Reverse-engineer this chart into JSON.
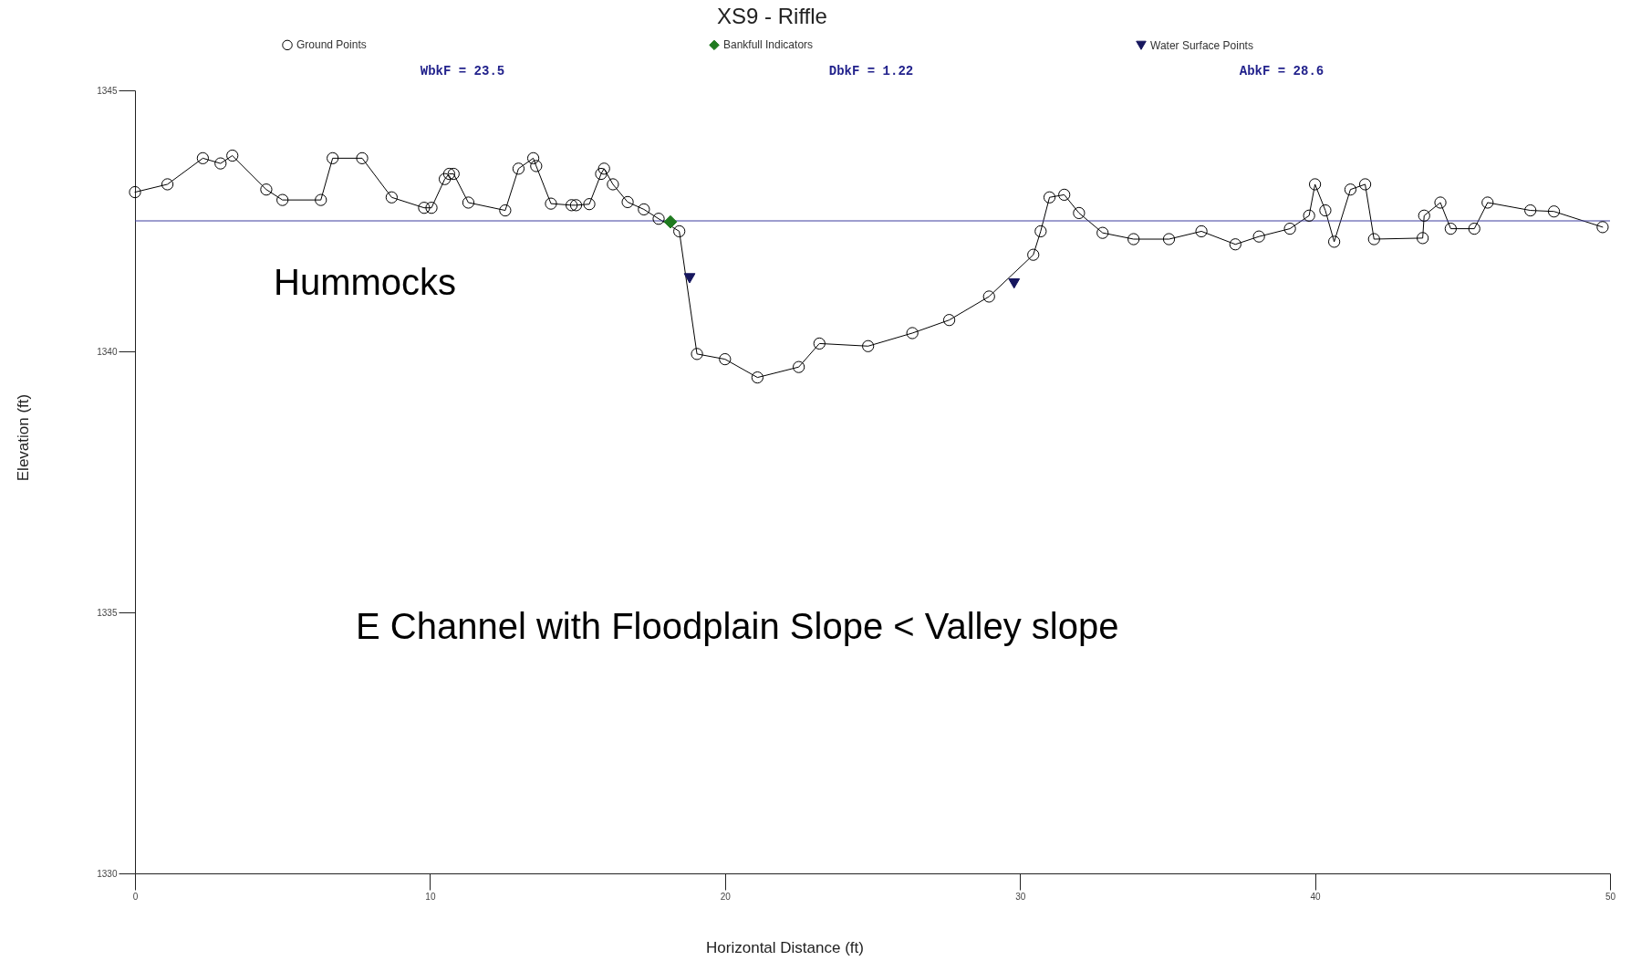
{
  "chart_data": {
    "type": "line",
    "title": "XS9 - Riffle",
    "xlabel": "Horizontal Distance (ft)",
    "ylabel": "Elevation (ft)",
    "xlim": [
      0,
      50
    ],
    "xticks": [
      0,
      10,
      20,
      30,
      40,
      50
    ],
    "ylim": [
      1330,
      1345
    ],
    "yticks": [
      1330,
      1335,
      1340,
      1345
    ],
    "legend": "top",
    "series": [
      {
        "name": "Ground Points",
        "marker": "circle",
        "color": "#000000",
        "x": [
          0,
          1.1,
          2.3,
          2.9,
          3.3,
          4.45,
          5.0,
          6.3,
          6.7,
          7.7,
          8.7,
          9.8,
          10.05,
          10.5,
          10.65,
          10.8,
          11.3,
          12.55,
          13.0,
          13.5,
          13.6,
          14.1,
          14.8,
          14.95,
          15.4,
          15.8,
          15.9,
          16.2,
          16.7,
          17.25,
          17.75,
          18.45,
          19.05,
          20.0,
          21.1,
          22.5,
          23.2,
          24.85,
          26.35,
          27.6,
          28.95,
          30.45,
          30.7,
          31.0,
          31.5,
          32.0,
          32.8,
          33.85,
          35.05,
          36.15,
          37.3,
          38.1,
          39.15,
          39.8,
          40.0,
          40.35,
          40.65,
          41.2,
          41.7,
          42.0,
          43.65,
          43.7,
          44.25,
          44.6,
          45.4,
          45.85,
          47.3,
          48.1,
          49.75
        ],
        "values": [
          1343.05,
          1343.2,
          1343.7,
          1343.6,
          1343.75,
          1343.1,
          1342.9,
          1342.9,
          1343.7,
          1343.7,
          1342.95,
          1342.75,
          1342.75,
          1343.3,
          1343.4,
          1343.4,
          1342.85,
          1342.7,
          1343.5,
          1343.7,
          1343.55,
          1342.83,
          1342.8,
          1342.8,
          1342.82,
          1343.4,
          1343.5,
          1343.2,
          1342.86,
          1342.72,
          1342.54,
          1342.3,
          1339.95,
          1339.85,
          1339.5,
          1339.7,
          1340.15,
          1340.1,
          1340.35,
          1340.6,
          1341.05,
          1341.85,
          1342.3,
          1342.95,
          1343.0,
          1342.65,
          1342.27,
          1342.15,
          1342.15,
          1342.3,
          1342.05,
          1342.2,
          1342.35,
          1342.6,
          1343.2,
          1342.7,
          1342.1,
          1343.1,
          1343.2,
          1342.15,
          1342.17,
          1342.6,
          1342.85,
          1342.35,
          1342.35,
          1342.85,
          1342.7,
          1342.68,
          1342.38
        ]
      },
      {
        "name": "Bankfull Indicators",
        "type": "scatter",
        "marker": "diamond",
        "color": "#1f7a1f",
        "x": [
          18.15
        ],
        "values": [
          1342.48
        ]
      },
      {
        "name": "Water Surface Points",
        "type": "scatter",
        "marker": "triangle",
        "color": "#16165e",
        "x": [
          18.8,
          29.8
        ],
        "values": [
          1341.4,
          1341.3
        ]
      }
    ],
    "ref_lines": [
      {
        "axis": "y",
        "value": 1342.5,
        "color": "#3d3d9e"
      }
    ],
    "annotations": [
      "WbkF = 23.5",
      "DbkF = 1.22",
      "AbkF = 28.6",
      "Hummocks",
      "E Channel with Floodplain Slope < Valley slope"
    ]
  }
}
